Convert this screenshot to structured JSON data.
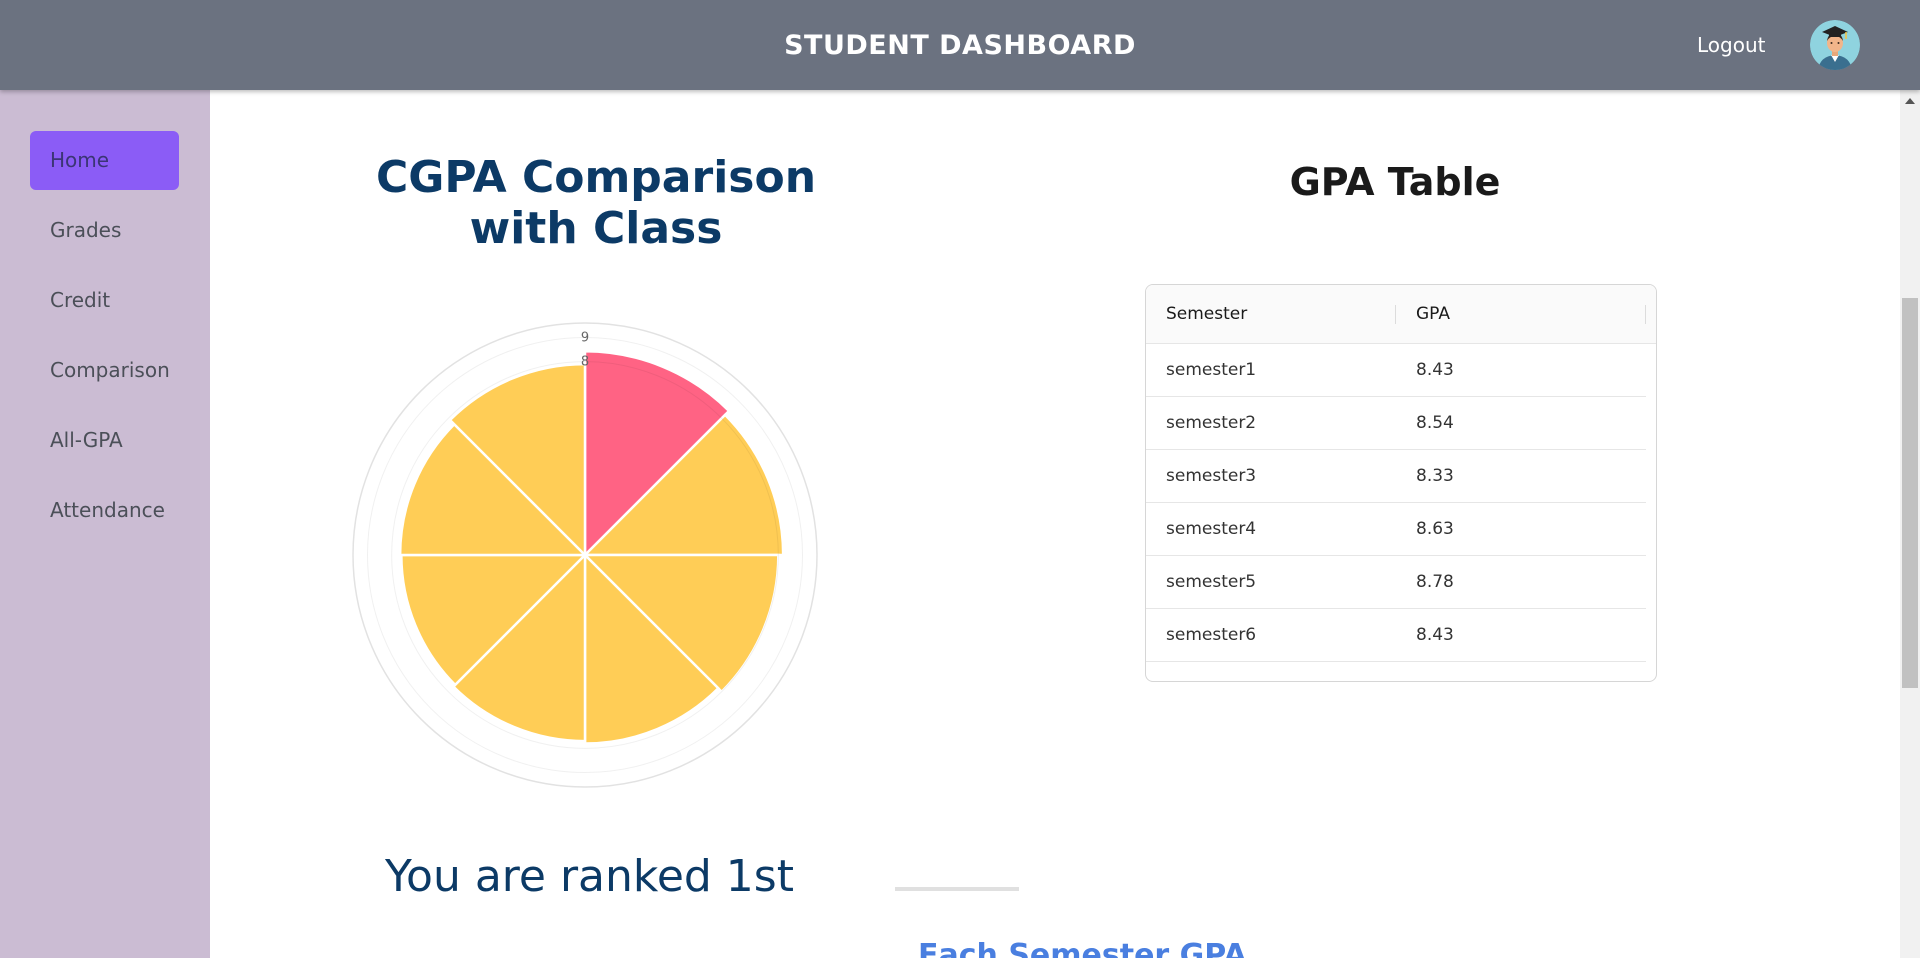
{
  "header": {
    "title": "STUDENT DASHBOARD",
    "logout_label": "Logout",
    "avatar_icon": "graduate-avatar-icon"
  },
  "sidebar": {
    "items": [
      {
        "label": "Home",
        "active": true
      },
      {
        "label": "Grades"
      },
      {
        "label": "Credit"
      },
      {
        "label": "Comparison"
      },
      {
        "label": "All-GPA"
      },
      {
        "label": "Attendance"
      }
    ]
  },
  "comparison": {
    "title": "CGPA Comparison with Class",
    "rank_text": "You are ranked 1st"
  },
  "chart_data": {
    "type": "polarArea",
    "r_ticks": [
      "9",
      "8"
    ],
    "values": [
      8.43,
      8.2,
      8.0,
      7.8,
      7.7,
      7.6,
      7.65,
      7.9
    ],
    "highlight_index": 0,
    "colors": {
      "highlight": "#ff6384",
      "others": "#ffcd56"
    }
  },
  "gpa_table": {
    "title": "GPA Table",
    "columns": [
      "Semester",
      "GPA"
    ],
    "rows": [
      {
        "semester": "semester1",
        "gpa": "8.43"
      },
      {
        "semester": "semester2",
        "gpa": "8.54"
      },
      {
        "semester": "semester3",
        "gpa": "8.33"
      },
      {
        "semester": "semester4",
        "gpa": "8.63"
      },
      {
        "semester": "semester5",
        "gpa": "8.78"
      },
      {
        "semester": "semester6",
        "gpa": "8.43"
      }
    ]
  },
  "each_semester": {
    "title": "Each Semester GPA"
  }
}
